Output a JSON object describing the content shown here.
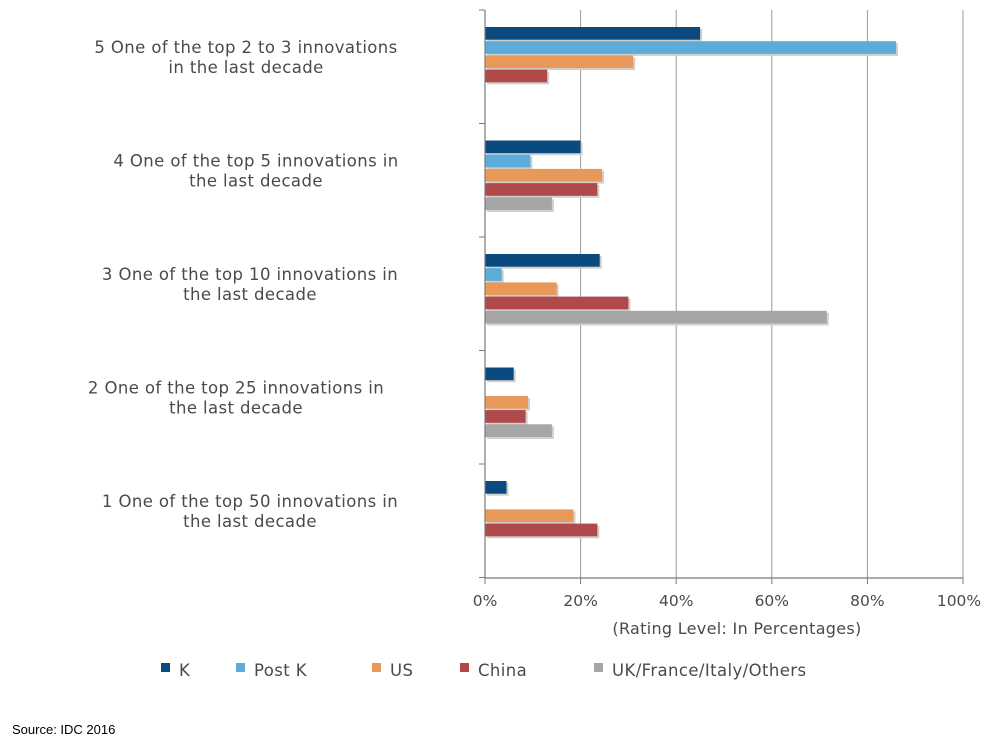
{
  "chart_data": {
    "type": "bar",
    "orientation": "horizontal",
    "categories": [
      [
        "5  One of the top 2 to 3 innovations",
        "in the last decade"
      ],
      [
        "4  One of the top 5 innovations in",
        "the last decade"
      ],
      [
        "3  One of the top 10 innovations in",
        "the last decade"
      ],
      [
        "2    One of the top 25 innovations in",
        "the last decade"
      ],
      [
        "1   One of the top 50 innovations in",
        "the last decade"
      ]
    ],
    "series": [
      {
        "name": "K",
        "color": "#0b4a7e",
        "values": [
          45,
          20,
          24,
          6,
          4.5
        ]
      },
      {
        "name": "Post K",
        "color": "#5bacd9",
        "values": [
          86,
          9.5,
          3.5,
          null,
          null
        ]
      },
      {
        "name": "US",
        "color": "#e8995a",
        "values": [
          31,
          24.5,
          15,
          9,
          18.5
        ]
      },
      {
        "name": "China",
        "color": "#b04a4a",
        "values": [
          13,
          23.5,
          30,
          8.5,
          23.5
        ]
      },
      {
        "name": "UK/France/Italy/Others",
        "color": "#a6a6a6",
        "values": [
          null,
          14,
          71.5,
          14,
          null
        ]
      }
    ],
    "xlim": [
      0,
      100
    ],
    "xticks": [
      "0%",
      "20%",
      "40%",
      "60%",
      "80%",
      "100%"
    ],
    "xlabel": "(Rating Level: In Percentages)",
    "grid": true,
    "legend_position": "bottom"
  },
  "source": "Source: IDC 2016"
}
